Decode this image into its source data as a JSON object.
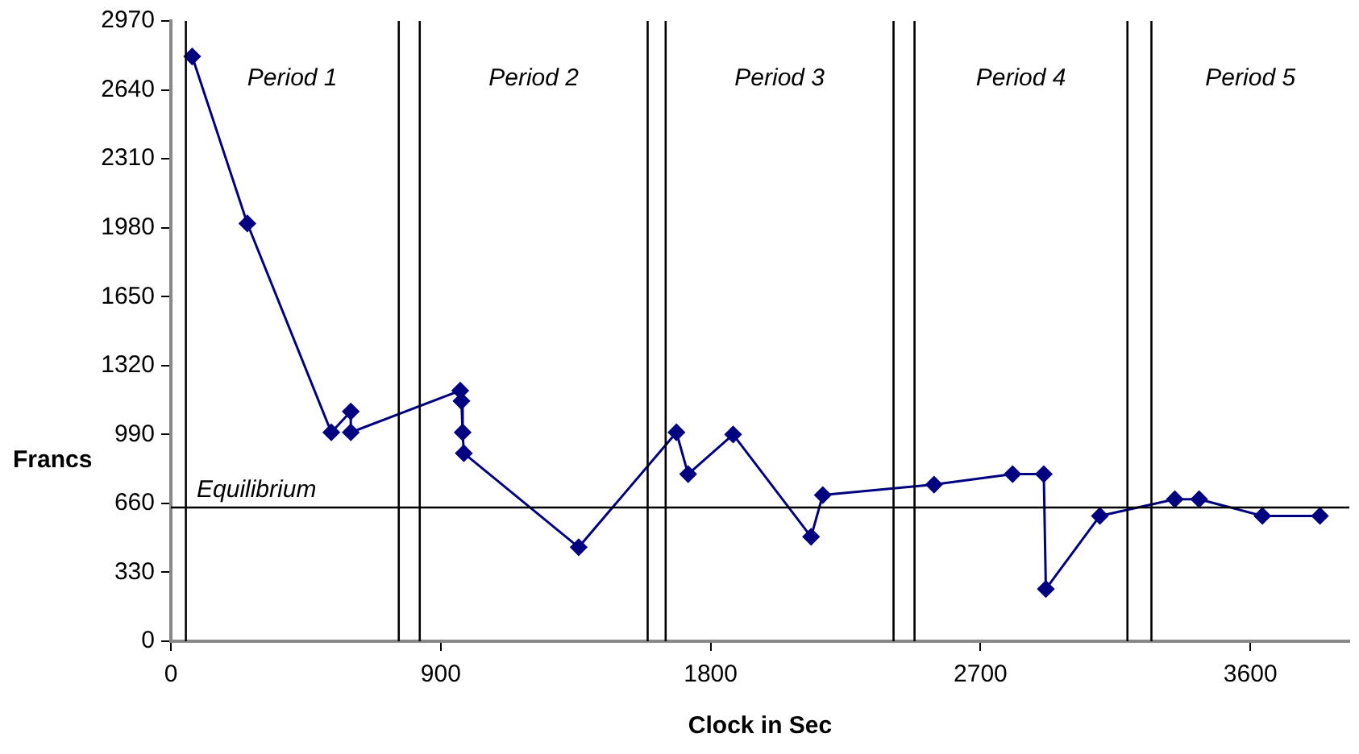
{
  "chart_data": {
    "type": "line",
    "xlabel": "Clock in Sec",
    "ylabel": "Francs",
    "x": [
      71,
      255,
      535,
      600,
      600,
      965,
      969,
      973,
      977,
      1360,
      1686,
      1725,
      1875,
      2135,
      2174,
      2545,
      2807,
      2911,
      2918,
      3098,
      3348,
      3429,
      3640,
      3832
    ],
    "series": [
      {
        "color": "#000080",
        "values": [
          2800,
          2000,
          1000,
          1100,
          1000,
          1200,
          1150,
          1000,
          900,
          450,
          1000,
          800,
          990,
          500,
          700,
          750,
          800,
          800,
          250,
          600,
          680,
          680,
          600,
          600
        ]
      }
    ],
    "xlim": [
      0,
      3930
    ],
    "xticks": [
      0,
      900,
      1800,
      2700,
      3600
    ],
    "ylim": [
      0,
      2970
    ],
    "yticks": [
      0,
      330,
      660,
      990,
      1320,
      1650,
      1980,
      2310,
      2640,
      2970
    ],
    "ref_lines": [
      {
        "axis": "y",
        "value": 640,
        "label": "Equilibrium",
        "color": "#000000"
      },
      {
        "axis": "x",
        "value": 50,
        "color": "#000000"
      },
      {
        "axis": "x",
        "value": 760,
        "color": "#000000"
      },
      {
        "axis": "x",
        "value": 830,
        "color": "#000000"
      },
      {
        "axis": "x",
        "value": 1590,
        "color": "#000000"
      },
      {
        "axis": "x",
        "value": 1650,
        "color": "#000000"
      },
      {
        "axis": "x",
        "value": 2410,
        "color": "#000000"
      },
      {
        "axis": "x",
        "value": 2480,
        "color": "#000000"
      },
      {
        "axis": "x",
        "value": 3190,
        "color": "#000000"
      },
      {
        "axis": "x",
        "value": 3270,
        "color": "#000000"
      }
    ],
    "annotations": [
      "Period 1",
      "Period 2",
      "Period 3",
      "Period 4",
      "Period 5"
    ],
    "grid": false,
    "legend": false,
    "marker": "diamond",
    "line_style": "solid"
  }
}
